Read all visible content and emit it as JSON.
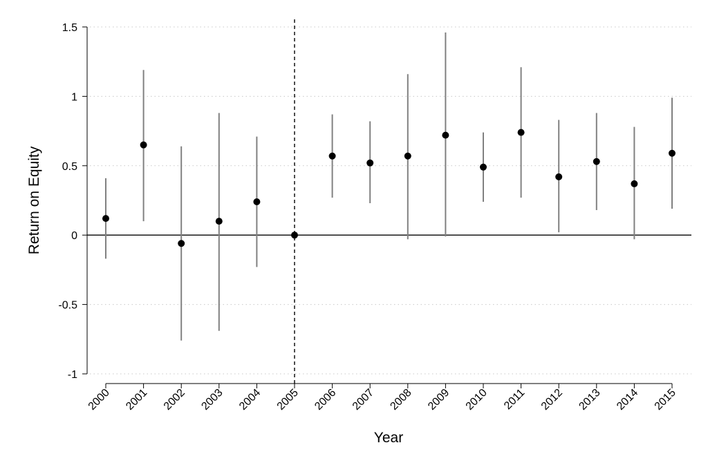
{
  "chart_data": {
    "type": "scatter",
    "subtype": "coefficient-plot-with-confidence-intervals",
    "xlabel": "Year",
    "ylabel": "Return on Equity",
    "x_tick_labels": [
      "2000",
      "2001",
      "2002",
      "2003",
      "2004",
      "2005",
      "2006",
      "2007",
      "2008",
      "2009",
      "2010",
      "2011",
      "2012",
      "2013",
      "2014",
      "2015"
    ],
    "y_ticks": [
      1.5,
      1,
      0.5,
      0,
      -0.5,
      -1
    ],
    "y_tick_labels": [
      "1.5",
      "1",
      "0.5",
      "0",
      "-0.5",
      "-1"
    ],
    "ylim": [
      -1,
      1.5
    ],
    "grid": "horizontal dotted",
    "reference_line_y": 0,
    "reference_line_x": "2005",
    "series": [
      {
        "points": [
          {
            "x": "2000",
            "y": 0.12,
            "ci_low": -0.17,
            "ci_high": 0.41
          },
          {
            "x": "2001",
            "y": 0.65,
            "ci_low": 0.1,
            "ci_high": 1.19
          },
          {
            "x": "2002",
            "y": -0.06,
            "ci_low": -0.76,
            "ci_high": 0.64
          },
          {
            "x": "2003",
            "y": 0.1,
            "ci_low": -0.69,
            "ci_high": 0.88
          },
          {
            "x": "2004",
            "y": 0.24,
            "ci_low": -0.23,
            "ci_high": 0.71
          },
          {
            "x": "2005",
            "y": 0.0,
            "ci_low": 0.0,
            "ci_high": 0.0
          },
          {
            "x": "2006",
            "y": 0.57,
            "ci_low": 0.27,
            "ci_high": 0.87
          },
          {
            "x": "2007",
            "y": 0.52,
            "ci_low": 0.23,
            "ci_high": 0.82
          },
          {
            "x": "2008",
            "y": 0.57,
            "ci_low": -0.03,
            "ci_high": 1.16
          },
          {
            "x": "2009",
            "y": 0.72,
            "ci_low": -0.01,
            "ci_high": 1.46
          },
          {
            "x": "2010",
            "y": 0.49,
            "ci_low": 0.24,
            "ci_high": 0.74
          },
          {
            "x": "2011",
            "y": 0.74,
            "ci_low": 0.27,
            "ci_high": 1.21
          },
          {
            "x": "2012",
            "y": 0.42,
            "ci_low": 0.02,
            "ci_high": 0.83
          },
          {
            "x": "2013",
            "y": 0.53,
            "ci_low": 0.18,
            "ci_high": 0.88
          },
          {
            "x": "2014",
            "y": 0.37,
            "ci_low": -0.03,
            "ci_high": 0.78
          },
          {
            "x": "2015",
            "y": 0.59,
            "ci_low": 0.19,
            "ci_high": 0.99
          }
        ]
      }
    ],
    "colors": {
      "point": "#000000",
      "ci_line": "#808080",
      "gridline": "#c8c8c8",
      "zero_line": "#000000",
      "vertical_line": "#000000"
    }
  }
}
